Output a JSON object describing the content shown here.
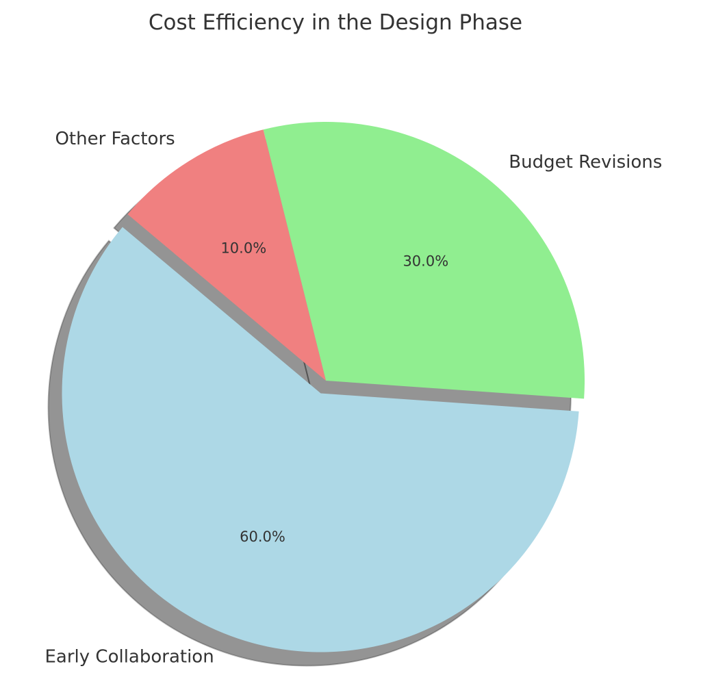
{
  "chart_data": {
    "type": "pie",
    "title": "Cost Efficiency in the Design Phase",
    "categories": [
      "Early Collaboration",
      "Budget Revisions",
      "Other Factors"
    ],
    "values": [
      60,
      30,
      10
    ],
    "percent_labels": [
      "60.0%",
      "30.0%",
      "10.0%"
    ],
    "colors": [
      "#add8e6",
      "#90ee90",
      "#f08080"
    ],
    "exploded": [
      true,
      false,
      false
    ],
    "shadow": true,
    "start_angle_deg": 140,
    "direction": "counterclockwise"
  }
}
